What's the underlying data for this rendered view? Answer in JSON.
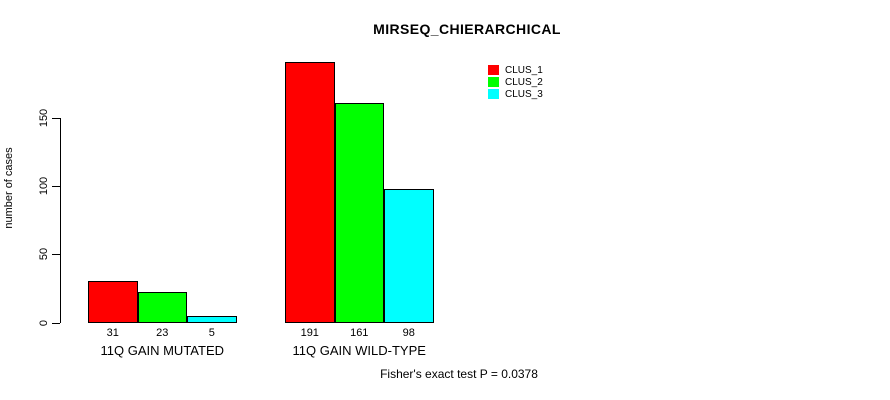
{
  "chart_data": {
    "type": "bar",
    "title": "MIRSEQ_CHIERARCHICAL",
    "ylabel": "number of cases",
    "xlabel": "",
    "categories": [
      "11Q GAIN MUTATED",
      "11Q GAIN WILD-TYPE"
    ],
    "series": [
      {
        "name": "CLUS_1",
        "color": "#ff0000",
        "values": [
          31,
          191
        ]
      },
      {
        "name": "CLUS_2",
        "color": "#00ff00",
        "values": [
          23,
          161
        ]
      },
      {
        "name": "CLUS_3",
        "color": "#00ffff",
        "values": [
          5,
          98
        ]
      }
    ],
    "yticks": [
      0,
      50,
      100,
      150
    ],
    "ylim": [
      0,
      191
    ],
    "grid": false,
    "legend_position": "top-right",
    "annotation": "Fisher's exact test P = 0.0378"
  }
}
